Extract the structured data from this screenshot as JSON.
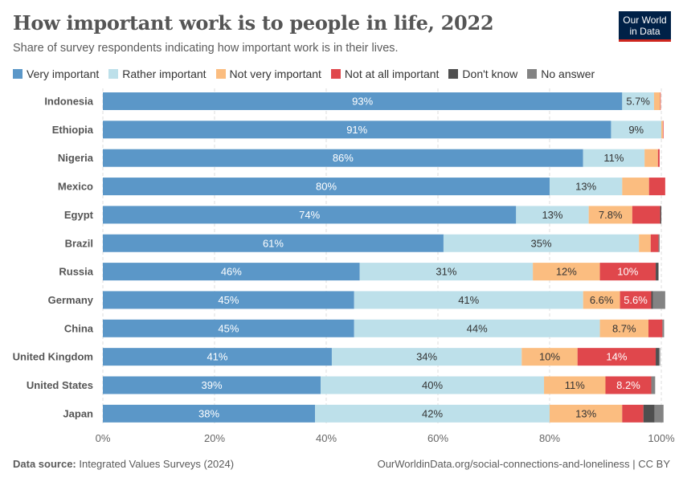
{
  "title": "How important work is to people in life, 2022",
  "subtitle": "Share of survey respondents indicating how important work is in their lives.",
  "logo": {
    "line1": "Our World",
    "line2": "in Data"
  },
  "footer": {
    "source_label": "Data source:",
    "source": "Integrated Values Surveys (2024)",
    "url": "OurWorldinData.org/social-connections-and-loneliness | CC BY"
  },
  "chart_data": {
    "type": "bar",
    "orientation": "horizontal-stacked",
    "title": "How important work is to people in life, 2022",
    "xlim": [
      0,
      100
    ],
    "x_ticks": [
      "0%",
      "20%",
      "40%",
      "60%",
      "80%",
      "100%"
    ],
    "grid": true,
    "legend_position": "top",
    "categories": [
      "Indonesia",
      "Ethiopia",
      "Nigeria",
      "Mexico",
      "Egypt",
      "Brazil",
      "Russia",
      "Germany",
      "China",
      "United Kingdom",
      "United States",
      "Japan"
    ],
    "series": [
      {
        "name": "Very important",
        "color": "#5b97c8",
        "values": [
          93,
          91,
          86,
          80,
          74,
          61,
          46,
          45,
          45,
          41,
          39,
          38
        ],
        "labels": [
          "93%",
          "91%",
          "86%",
          "80%",
          "74%",
          "61%",
          "46%",
          "45%",
          "45%",
          "41%",
          "39%",
          "38%"
        ]
      },
      {
        "name": "Rather important",
        "color": "#bde0ea",
        "values": [
          5.7,
          9,
          11,
          13,
          13,
          35,
          31,
          41,
          44,
          34,
          40,
          42
        ],
        "labels": [
          "5.7%",
          "9%",
          "11%",
          "13%",
          "13%",
          "35%",
          "31%",
          "41%",
          "44%",
          "34%",
          "40%",
          "42%"
        ]
      },
      {
        "name": "Not very important",
        "color": "#fbbd80",
        "values": [
          1.1,
          0.3,
          2.4,
          4.8,
          7.8,
          2.1,
          12,
          6.6,
          8.7,
          10,
          11,
          13
        ],
        "labels": [
          null,
          null,
          null,
          null,
          "7.8%",
          null,
          "12%",
          "6.6%",
          "8.7%",
          "10%",
          "11%",
          "13%"
        ]
      },
      {
        "name": "Not at all important",
        "color": "#e0474c",
        "values": [
          0.1,
          0.1,
          0.3,
          2.9,
          5,
          1.4,
          10,
          5.6,
          2.5,
          14,
          8.2,
          3.8
        ],
        "labels": [
          null,
          null,
          null,
          null,
          null,
          null,
          "10%",
          "5.6%",
          null,
          "14%",
          "8.2%",
          null
        ]
      },
      {
        "name": "Don't know",
        "color": "#4f4f4f",
        "values": [
          0,
          0,
          0,
          0,
          0.2,
          0,
          0.5,
          0.3,
          0,
          0.6,
          0,
          2.0
        ],
        "labels": []
      },
      {
        "name": "No answer",
        "color": "#838383",
        "values": [
          0,
          0,
          0,
          0,
          0,
          0.2,
          0,
          2.2,
          0.3,
          0.2,
          0.7,
          1.6
        ],
        "labels": []
      }
    ]
  }
}
